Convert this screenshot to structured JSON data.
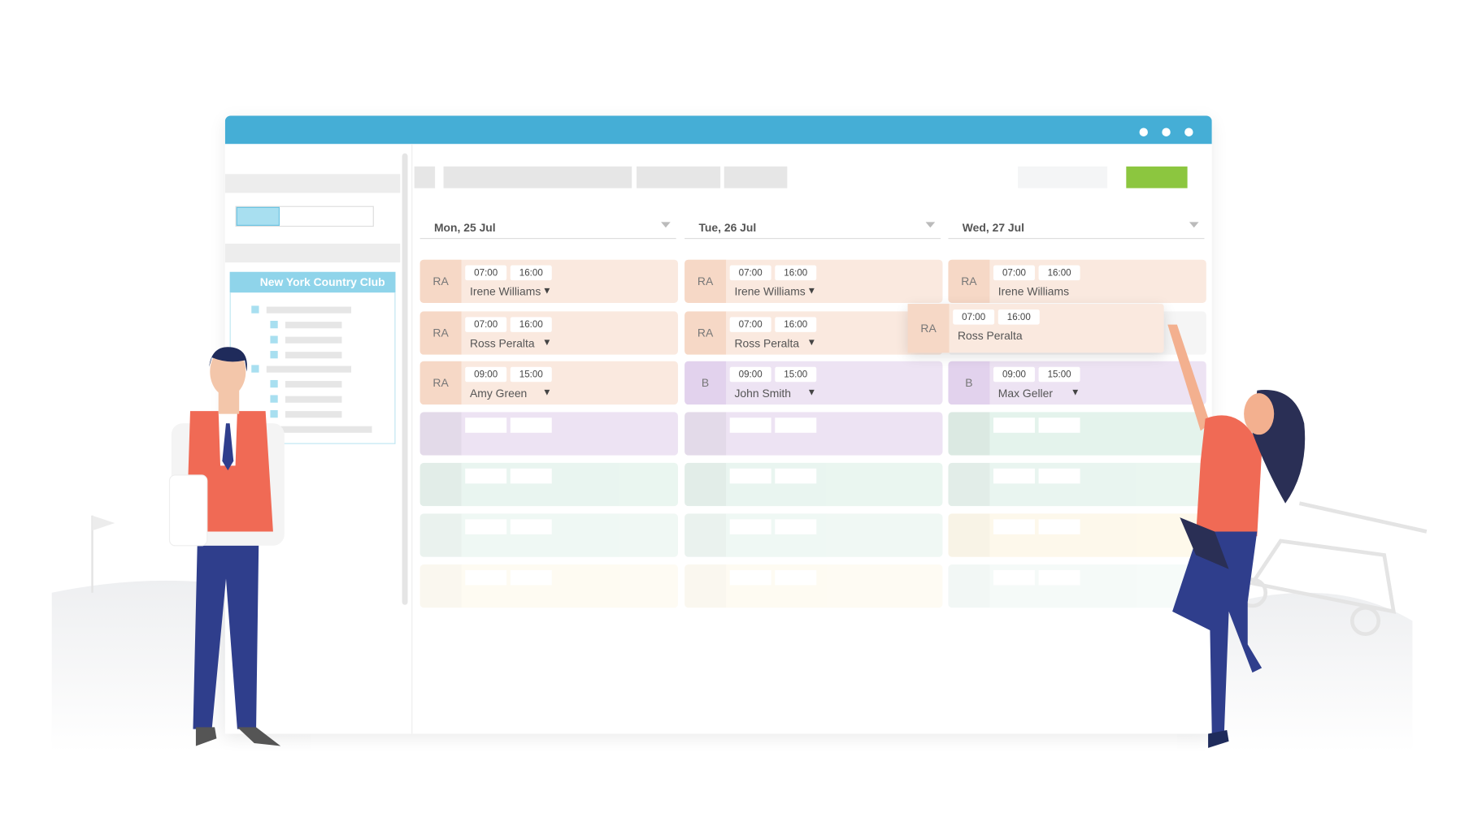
{
  "sidebar": {
    "location": "New York Country Club"
  },
  "days": [
    {
      "label": "Mon, 25 Jul",
      "shifts": [
        {
          "role": "RA",
          "start": "07:00",
          "end": "16:00",
          "name": "Irene Williams",
          "color": "#fae9df",
          "role_color": "#f6d8c6",
          "dropdown": true
        },
        {
          "role": "RA",
          "start": "07:00",
          "end": "16:00",
          "name": "Ross Peralta",
          "color": "#fae9df",
          "role_color": "#f6d8c6",
          "dropdown": true
        },
        {
          "role": "RA",
          "start": "09:00",
          "end": "15:00",
          "name": "Amy Green",
          "color": "#fae9df",
          "role_color": "#f6d8c6",
          "dropdown": true
        }
      ]
    },
    {
      "label": "Tue, 26 Jul",
      "shifts": [
        {
          "role": "RA",
          "start": "07:00",
          "end": "16:00",
          "name": "Irene Williams",
          "color": "#fae9df",
          "role_color": "#f6d8c6",
          "dropdown": true
        },
        {
          "role": "RA",
          "start": "07:00",
          "end": "16:00",
          "name": "Ross Peralta",
          "color": "#fae9df",
          "role_color": "#f6d8c6",
          "dropdown": true
        },
        {
          "role": "B",
          "start": "09:00",
          "end": "15:00",
          "name": "John Smith",
          "color": "#ede3f3",
          "role_color": "#e2d2ed",
          "dropdown": true
        }
      ]
    },
    {
      "label": "Wed, 27 Jul",
      "shifts": [
        {
          "role": "RA",
          "start": "07:00",
          "end": "16:00",
          "name": "Irene Williams",
          "color": "#fae9df",
          "role_color": "#f6d8c6",
          "dropdown": false
        },
        null,
        {
          "role": "B",
          "start": "09:00",
          "end": "15:00",
          "name": "Max Geller",
          "color": "#ede3f3",
          "role_color": "#e2d2ed",
          "dropdown": true
        }
      ]
    }
  ],
  "dragged_shift": {
    "role": "RA",
    "start": "07:00",
    "end": "16:00",
    "name": "Ross Peralta"
  }
}
